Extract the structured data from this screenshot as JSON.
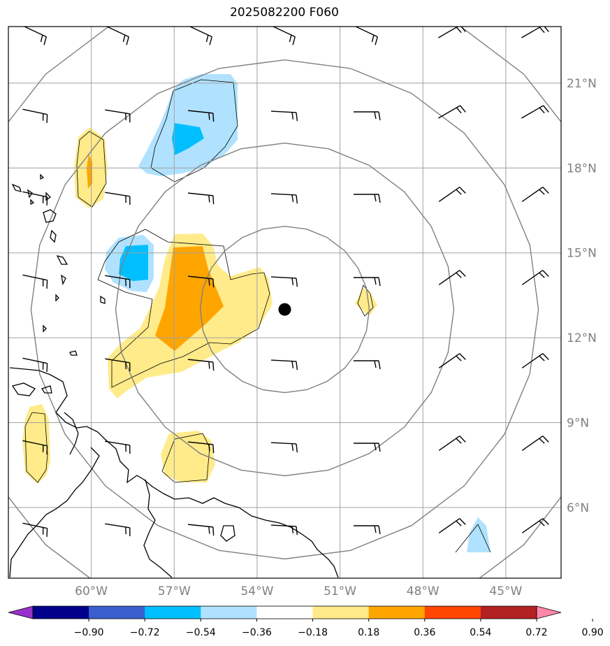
{
  "title": "2025082200 F060",
  "map": {
    "lon_range": [
      -63,
      -43
    ],
    "lat_range": [
      3.5,
      23
    ],
    "lon_ticks": [
      {
        "lon": -60,
        "label": "60°W"
      },
      {
        "lon": -57,
        "label": "57°W"
      },
      {
        "lon": -54,
        "label": "54°W"
      },
      {
        "lon": -51,
        "label": "51°W"
      },
      {
        "lon": -48,
        "label": "48°W"
      },
      {
        "lon": -45,
        "label": "45°W"
      }
    ],
    "lat_ticks": [
      {
        "lat": 6,
        "label": "6°N"
      },
      {
        "lat": 9,
        "label": "9°N"
      },
      {
        "lat": 12,
        "label": "12°N"
      },
      {
        "lat": 15,
        "label": "15°N"
      },
      {
        "lat": 18,
        "label": "18°N"
      },
      {
        "lat": 21,
        "label": "21°N"
      }
    ],
    "center_marker": {
      "lon": -53,
      "lat": 13
    },
    "range_rings_deg": [
      3,
      6,
      9,
      12
    ],
    "colors": {
      "grid": "#a0a0a0",
      "ring": "#808080",
      "coast": "#000000",
      "barb": "#000000"
    }
  },
  "colorbar": {
    "levels": [
      "−0.90",
      "−0.72",
      "−0.54",
      "−0.36",
      "−0.18",
      "0.18",
      "0.36",
      "0.54",
      "0.72",
      "0.90"
    ],
    "colors": [
      "#9932cc",
      "#00008b",
      "#3a5fcd",
      "#00bfff",
      "#b0e2ff",
      "#ffffff",
      "#ffeb8a",
      "#ffa500",
      "#ff4500",
      "#b22222",
      "#ff88aa"
    ]
  }
}
